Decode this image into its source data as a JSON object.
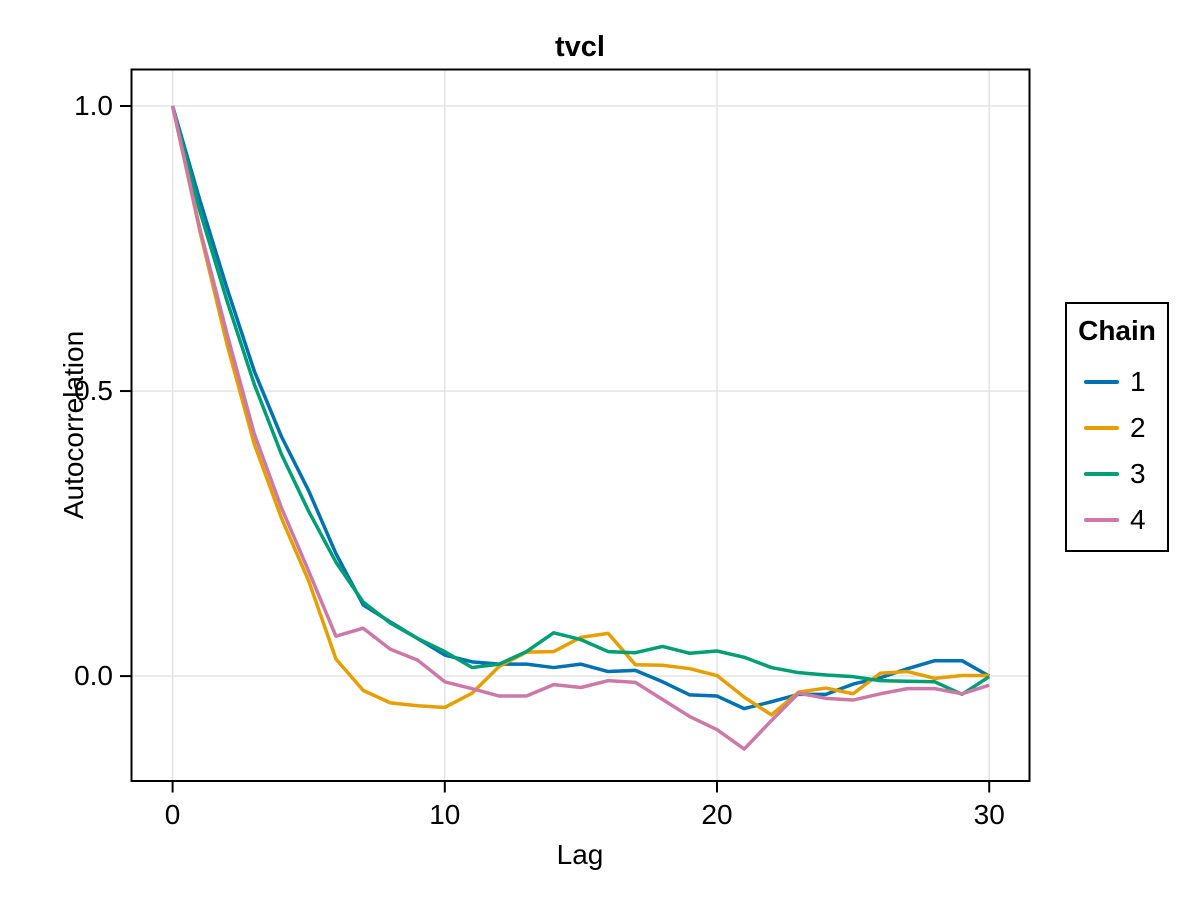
{
  "chart_data": {
    "type": "line",
    "title": "tvcl",
    "xlabel": "Lag",
    "ylabel": "Autocorrelation",
    "legend_title": "Chain",
    "legend_position": "right",
    "grid": true,
    "xlim": [
      -1.51,
      31.48
    ],
    "ylim": [
      -0.184,
      1.064
    ],
    "xticks": {
      "values": [
        0,
        10,
        20,
        30
      ],
      "labels": [
        "0",
        "10",
        "20",
        "30"
      ]
    },
    "yticks": {
      "values": [
        0.0,
        0.5,
        1.0
      ],
      "labels": [
        "0.0",
        "0.5",
        "1.0"
      ]
    },
    "x": [
      0,
      1,
      2,
      3,
      4,
      5,
      6,
      7,
      8,
      9,
      10,
      11,
      12,
      13,
      14,
      15,
      16,
      17,
      18,
      19,
      20,
      21,
      22,
      23,
      24,
      25,
      26,
      27,
      28,
      29,
      30
    ],
    "series": [
      {
        "name": "1",
        "color": "#0072B2",
        "values": [
          1.0,
          0.835,
          0.68,
          0.535,
          0.42,
          0.325,
          0.215,
          0.125,
          0.095,
          0.066,
          0.037,
          0.025,
          0.021,
          0.021,
          0.015,
          0.021,
          0.008,
          0.01,
          -0.01,
          -0.033,
          -0.035,
          -0.057,
          -0.045,
          -0.032,
          -0.032,
          -0.014,
          -0.003,
          0.013,
          0.027,
          0.027,
          0.0
        ]
      },
      {
        "name": "2",
        "color": "#E69F00",
        "values": [
          1.0,
          0.781,
          0.582,
          0.407,
          0.277,
          0.167,
          0.03,
          -0.025,
          -0.047,
          -0.052,
          -0.055,
          -0.03,
          0.017,
          0.042,
          0.043,
          0.068,
          0.075,
          0.02,
          0.019,
          0.013,
          0.001,
          -0.037,
          -0.068,
          -0.028,
          -0.021,
          -0.031,
          0.005,
          0.008,
          -0.004,
          0.001,
          0.001
        ]
      },
      {
        "name": "3",
        "color": "#009E73",
        "values": [
          1.0,
          0.816,
          0.658,
          0.512,
          0.389,
          0.289,
          0.2,
          0.13,
          0.093,
          0.066,
          0.043,
          0.015,
          0.021,
          0.043,
          0.076,
          0.064,
          0.043,
          0.041,
          0.052,
          0.04,
          0.044,
          0.033,
          0.015,
          0.006,
          0.002,
          -0.001,
          -0.008,
          -0.009,
          -0.01,
          -0.032,
          -0.001
        ]
      },
      {
        "name": "4",
        "color": "#CC79A7",
        "values": [
          1.0,
          0.785,
          0.6,
          0.425,
          0.295,
          0.184,
          0.07,
          0.084,
          0.047,
          0.028,
          -0.01,
          -0.022,
          -0.035,
          -0.035,
          -0.015,
          -0.02,
          -0.008,
          -0.011,
          -0.041,
          -0.071,
          -0.094,
          -0.128,
          -0.078,
          -0.03,
          -0.039,
          -0.042,
          -0.031,
          -0.022,
          -0.022,
          -0.031,
          -0.016
        ]
      }
    ],
    "style": {
      "grid_color": "#e2e2e2",
      "spine_color": "#000000",
      "background": "#ffffff",
      "line_width": 3.5
    }
  }
}
